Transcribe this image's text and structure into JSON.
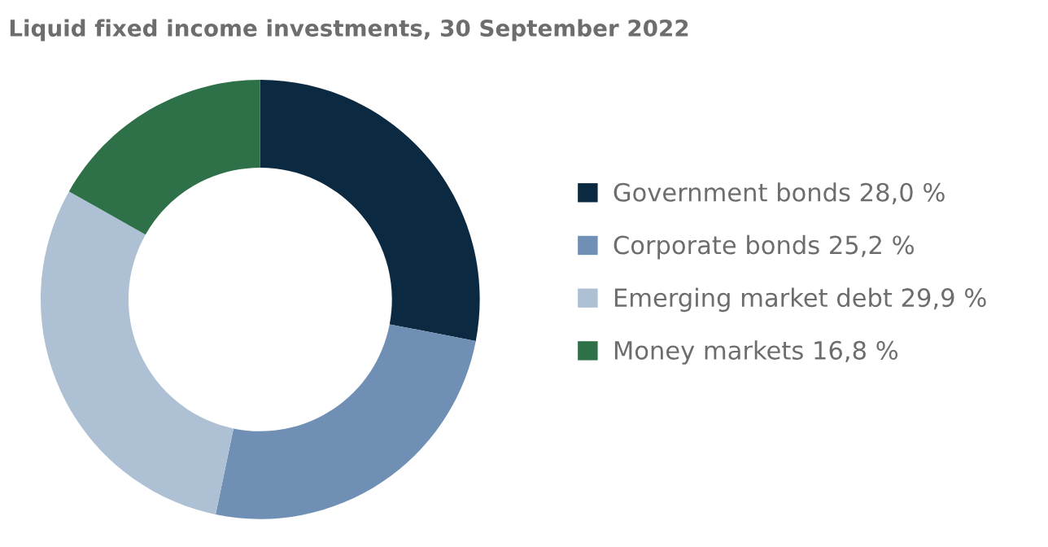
{
  "chart_data": {
    "type": "donut",
    "title": "Liquid fixed income investments, 30 September 2022",
    "categories": [
      "Government bonds",
      "Corporate bonds",
      "Emerging market debt",
      "Money markets"
    ],
    "values": [
      28.0,
      25.2,
      29.9,
      16.8
    ],
    "value_labels": [
      "28,0 %",
      "25,2 %",
      "29,9 %",
      "16,8 %"
    ],
    "colors": [
      "#0b2940",
      "#6f90b4",
      "#adc0d4",
      "#2e7047"
    ],
    "legend": "right"
  }
}
